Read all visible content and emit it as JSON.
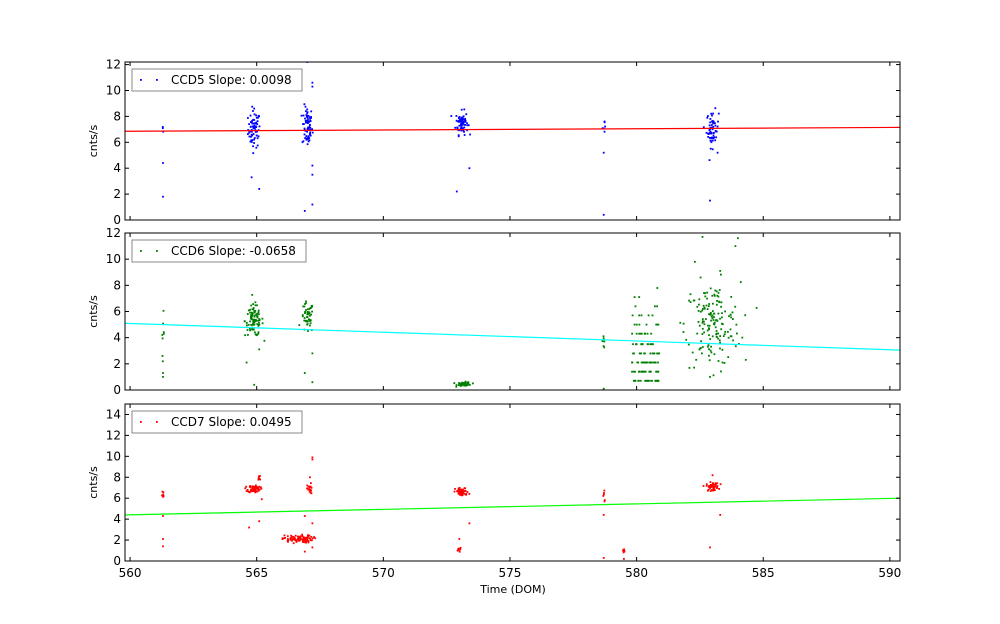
{
  "figure": {
    "xlabel": "Time (DOM)"
  },
  "chart_data": [
    {
      "type": "scatter",
      "series": [
        {
          "name": "CCD5 Slope: 0.0098",
          "color": "#0000ff",
          "fit_color": "#ff0000"
        }
      ],
      "legend": "CCD5 Slope: 0.0098",
      "legend_position": "top-left",
      "ylabel": "cnts/s",
      "xlim": [
        559.8,
        590.4
      ],
      "ylim": [
        0,
        12.2
      ],
      "xticks": [
        560,
        565,
        570,
        575,
        580,
        585,
        590
      ],
      "yticks": [
        0,
        2,
        4,
        6,
        8,
        10,
        12
      ],
      "fit_line": {
        "x": [
          559.8,
          590.4
        ],
        "y": [
          6.85,
          7.15
        ]
      },
      "clusters": [
        {
          "x": 561.3,
          "y": 6.9,
          "spread_x": 0.02,
          "spread_y": 0.2,
          "n": 3
        },
        {
          "x": 564.9,
          "y": 7.0,
          "spread_x": 0.12,
          "spread_y": 0.7,
          "n": 70
        },
        {
          "x": 567.0,
          "y": 7.2,
          "spread_x": 0.1,
          "spread_y": 0.8,
          "n": 70
        },
        {
          "x": 573.1,
          "y": 7.5,
          "spread_x": 0.12,
          "spread_y": 0.45,
          "n": 75
        },
        {
          "x": 578.7,
          "y": 7.3,
          "spread_x": 0.02,
          "spread_y": 0.3,
          "n": 6
        },
        {
          "x": 583.0,
          "y": 7.0,
          "spread_x": 0.12,
          "spread_y": 0.7,
          "n": 60
        }
      ],
      "outliers": [
        {
          "x": 561.3,
          "y": 4.4
        },
        {
          "x": 561.3,
          "y": 1.8
        },
        {
          "x": 564.8,
          "y": 3.3
        },
        {
          "x": 565.1,
          "y": 2.4
        },
        {
          "x": 564.9,
          "y": 8.6
        },
        {
          "x": 566.9,
          "y": 0.7
        },
        {
          "x": 567.2,
          "y": 1.2
        },
        {
          "x": 567.2,
          "y": 3.5
        },
        {
          "x": 567.2,
          "y": 4.2
        },
        {
          "x": 567.2,
          "y": 10.3
        },
        {
          "x": 567.2,
          "y": 10.6
        },
        {
          "x": 567.0,
          "y": 12.2
        },
        {
          "x": 572.9,
          "y": 2.2
        },
        {
          "x": 573.4,
          "y": 4.0
        },
        {
          "x": 578.7,
          "y": 5.2
        },
        {
          "x": 578.7,
          "y": 0.4
        },
        {
          "x": 582.9,
          "y": 1.5
        },
        {
          "x": 583.2,
          "y": 5.2
        }
      ]
    },
    {
      "type": "scatter",
      "series": [
        {
          "name": "CCD6 Slope: -0.0658",
          "color": "#007f00",
          "fit_color": "#00ffff"
        }
      ],
      "legend": "CCD6 Slope: -0.0658",
      "legend_position": "top-left",
      "ylabel": "cnts/s",
      "xlim": [
        559.8,
        590.4
      ],
      "ylim": [
        0,
        12
      ],
      "xticks": [
        560,
        565,
        570,
        575,
        580,
        585,
        590
      ],
      "yticks": [
        0,
        2,
        4,
        6,
        8,
        10,
        12
      ],
      "fit_line": {
        "x": [
          559.8,
          590.4
        ],
        "y": [
          5.1,
          3.05
        ]
      },
      "clusters": [
        {
          "x": 561.3,
          "y": 4.3,
          "spread_x": 0.02,
          "spread_y": 0.8,
          "n": 8
        },
        {
          "x": 564.9,
          "y": 5.3,
          "spread_x": 0.18,
          "spread_y": 0.6,
          "n": 90
        },
        {
          "x": 567.0,
          "y": 5.5,
          "spread_x": 0.12,
          "spread_y": 0.6,
          "n": 50
        },
        {
          "x": 573.2,
          "y": 0.45,
          "spread_x": 0.14,
          "spread_y": 0.08,
          "n": 45
        },
        {
          "x": 578.7,
          "y": 3.8,
          "spread_x": 0.02,
          "spread_y": 0.3,
          "n": 6
        },
        {
          "x": 583.0,
          "y": 5.0,
          "spread_x": 0.55,
          "spread_y": 1.6,
          "n": 160
        }
      ],
      "bands": {
        "x_range": [
          579.8,
          580.9
        ],
        "y_levels": [
          0.7,
          1.4,
          2.1,
          2.8,
          3.5,
          4.3,
          5.0,
          5.7,
          6.4,
          7.1,
          7.8
        ],
        "density": [
          24,
          22,
          22,
          18,
          14,
          10,
          7,
          5,
          3,
          2,
          1
        ]
      },
      "outliers": [
        {
          "x": 561.3,
          "y": 1.3
        },
        {
          "x": 561.3,
          "y": 1.0
        },
        {
          "x": 564.6,
          "y": 2.1
        },
        {
          "x": 564.9,
          "y": 0.4
        },
        {
          "x": 565.1,
          "y": 3.1
        },
        {
          "x": 566.9,
          "y": 1.3
        },
        {
          "x": 567.2,
          "y": 2.8
        },
        {
          "x": 567.2,
          "y": 0.6
        },
        {
          "x": 578.7,
          "y": 0.1
        },
        {
          "x": 582.6,
          "y": 11.7
        },
        {
          "x": 583.9,
          "y": 11.0
        },
        {
          "x": 584.0,
          "y": 11.6
        },
        {
          "x": 582.3,
          "y": 9.8
        },
        {
          "x": 583.3,
          "y": 9.1
        },
        {
          "x": 582.9,
          "y": 1.0
        }
      ]
    },
    {
      "type": "scatter",
      "series": [
        {
          "name": "CCD7 Slope: 0.0495",
          "color": "#ff0000",
          "fit_color": "#00ff00"
        }
      ],
      "legend": "CCD7 Slope: 0.0495",
      "legend_position": "top-left",
      "ylabel": "cnts/s",
      "xlim": [
        559.8,
        590.4
      ],
      "ylim": [
        0,
        15
      ],
      "xticks": [
        560,
        565,
        570,
        575,
        580,
        585,
        590
      ],
      "yticks": [
        0,
        2,
        4,
        6,
        8,
        10,
        12,
        14
      ],
      "fit_line": {
        "x": [
          559.8,
          590.4
        ],
        "y": [
          4.4,
          6.0
        ]
      },
      "clusters": [
        {
          "x": 561.3,
          "y": 6.2,
          "spread_x": 0.02,
          "spread_y": 0.6,
          "n": 6
        },
        {
          "x": 564.9,
          "y": 6.9,
          "spread_x": 0.12,
          "spread_y": 0.18,
          "n": 60
        },
        {
          "x": 565.1,
          "y": 7.9,
          "spread_x": 0.03,
          "spread_y": 0.2,
          "n": 8
        },
        {
          "x": 566.6,
          "y": 2.1,
          "spread_x": 0.3,
          "spread_y": 0.18,
          "n": 90
        },
        {
          "x": 567.1,
          "y": 6.8,
          "spread_x": 0.05,
          "spread_y": 0.3,
          "n": 20
        },
        {
          "x": 573.1,
          "y": 6.6,
          "spread_x": 0.13,
          "spread_y": 0.2,
          "n": 55
        },
        {
          "x": 573.0,
          "y": 1.1,
          "spread_x": 0.03,
          "spread_y": 0.08,
          "n": 10
        },
        {
          "x": 578.7,
          "y": 6.2,
          "spread_x": 0.02,
          "spread_y": 0.4,
          "n": 6
        },
        {
          "x": 579.5,
          "y": 1.0,
          "spread_x": 0.02,
          "spread_y": 0.08,
          "n": 8
        },
        {
          "x": 583.0,
          "y": 7.1,
          "spread_x": 0.12,
          "spread_y": 0.2,
          "n": 50
        }
      ],
      "outliers": [
        {
          "x": 561.3,
          "y": 2.1
        },
        {
          "x": 561.3,
          "y": 1.4
        },
        {
          "x": 561.3,
          "y": 4.3
        },
        {
          "x": 564.7,
          "y": 3.2
        },
        {
          "x": 565.1,
          "y": 3.8
        },
        {
          "x": 565.2,
          "y": 5.9
        },
        {
          "x": 566.9,
          "y": 0.9
        },
        {
          "x": 567.2,
          "y": 1.3
        },
        {
          "x": 567.2,
          "y": 3.6
        },
        {
          "x": 567.2,
          "y": 9.7
        },
        {
          "x": 567.2,
          "y": 9.9
        },
        {
          "x": 567.1,
          "y": 8.0
        },
        {
          "x": 566.9,
          "y": 4.3
        },
        {
          "x": 573.0,
          "y": 2.1
        },
        {
          "x": 573.4,
          "y": 3.6
        },
        {
          "x": 578.7,
          "y": 4.4
        },
        {
          "x": 578.7,
          "y": 0.3
        },
        {
          "x": 583.0,
          "y": 8.2
        },
        {
          "x": 582.9,
          "y": 1.3
        },
        {
          "x": 583.3,
          "y": 4.4
        },
        {
          "x": 579.5,
          "y": 0.2
        }
      ]
    }
  ]
}
